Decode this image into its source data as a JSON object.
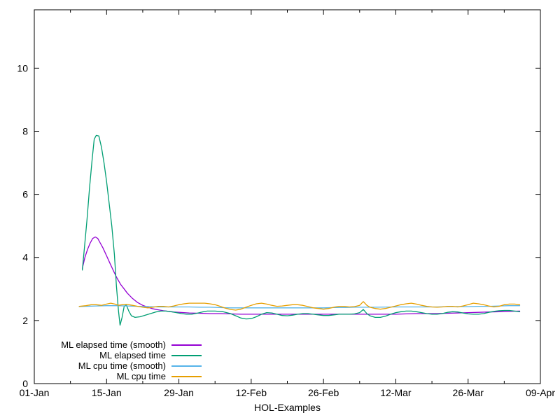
{
  "figure": {
    "background": "#ffffff",
    "axis_color": "#000000"
  },
  "legend": {
    "position": "inside-bottom-left",
    "items": [
      {
        "label": "ML elapsed time (smooth)",
        "color": "#9400d3"
      },
      {
        "label": "ML elapsed time",
        "color": "#009e73"
      },
      {
        "label": "ML cpu time (smooth)",
        "color": "#56b4e9"
      },
      {
        "label": "ML cpu time",
        "color": "#e69f00"
      }
    ]
  },
  "chart_data": {
    "type": "line",
    "title": "",
    "xlabel": "HOL-Examples",
    "ylabel": "",
    "grid": false,
    "x_axis": {
      "unit": "days-since-01-Jan",
      "range_days": [
        0,
        98
      ],
      "tick_days": [
        0,
        14,
        28,
        42,
        56,
        70,
        84,
        98
      ],
      "tick_labels": [
        "01-Jan",
        "15-Jan",
        "29-Jan",
        "12-Feb",
        "26-Feb",
        "12-Mar",
        "26-Mar",
        "09-Apr"
      ],
      "minor_tick_days": [
        7,
        21,
        35,
        49,
        63,
        77,
        91
      ]
    },
    "y_axis": {
      "range": [
        0,
        11.85
      ],
      "ticks": [
        0,
        2,
        4,
        6,
        8,
        10
      ],
      "tick_labels": [
        "0",
        "2",
        "4",
        "6",
        "8",
        "10"
      ]
    },
    "series": [
      {
        "name": "ML elapsed time (smooth)",
        "color": "#9400d3",
        "points": [
          [
            9.3,
            3.65
          ],
          [
            9.8,
            4.0
          ],
          [
            10.3,
            4.25
          ],
          [
            10.8,
            4.45
          ],
          [
            11.3,
            4.6
          ],
          [
            11.8,
            4.65
          ],
          [
            12.3,
            4.6
          ],
          [
            12.8,
            4.45
          ],
          [
            13.3,
            4.3
          ],
          [
            14,
            4.05
          ],
          [
            14.7,
            3.8
          ],
          [
            15.4,
            3.55
          ],
          [
            16,
            3.35
          ],
          [
            16.7,
            3.15
          ],
          [
            17.4,
            3.0
          ],
          [
            18,
            2.87
          ],
          [
            19,
            2.7
          ],
          [
            20,
            2.57
          ],
          [
            21,
            2.48
          ],
          [
            22,
            2.42
          ],
          [
            23,
            2.37
          ],
          [
            24,
            2.34
          ],
          [
            25,
            2.31
          ],
          [
            26,
            2.29
          ],
          [
            27,
            2.27
          ],
          [
            28,
            2.26
          ],
          [
            29,
            2.25
          ],
          [
            30,
            2.24
          ],
          [
            32,
            2.23
          ],
          [
            34,
            2.22
          ],
          [
            36,
            2.22
          ],
          [
            38,
            2.21
          ],
          [
            40,
            2.2
          ],
          [
            44,
            2.2
          ],
          [
            48,
            2.2
          ],
          [
            52,
            2.2
          ],
          [
            56,
            2.2
          ],
          [
            60,
            2.2
          ],
          [
            64,
            2.2
          ],
          [
            68,
            2.2
          ],
          [
            70,
            2.2
          ],
          [
            72,
            2.21
          ],
          [
            74,
            2.22
          ],
          [
            76,
            2.22
          ],
          [
            78,
            2.22
          ],
          [
            80,
            2.23
          ],
          [
            82,
            2.24
          ],
          [
            84,
            2.25
          ],
          [
            86,
            2.26
          ],
          [
            88,
            2.27
          ],
          [
            90,
            2.28
          ],
          [
            92,
            2.29
          ],
          [
            94,
            2.3
          ]
        ]
      },
      {
        "name": "ML elapsed time",
        "color": "#009e73",
        "points": [
          [
            9.3,
            3.6
          ],
          [
            9.7,
            4.3
          ],
          [
            10.2,
            5.2
          ],
          [
            10.7,
            6.2
          ],
          [
            11.2,
            7.1
          ],
          [
            11.6,
            7.75
          ],
          [
            12,
            7.87
          ],
          [
            12.5,
            7.85
          ],
          [
            13,
            7.5
          ],
          [
            13.5,
            7.0
          ],
          [
            14,
            6.4
          ],
          [
            14.5,
            5.7
          ],
          [
            15,
            5.0
          ],
          [
            15.5,
            4.1
          ],
          [
            15.9,
            3.1
          ],
          [
            16.3,
            2.3
          ],
          [
            16.6,
            1.85
          ],
          [
            17,
            2.1
          ],
          [
            17.4,
            2.45
          ],
          [
            17.8,
            2.5
          ],
          [
            18.3,
            2.3
          ],
          [
            18.8,
            2.15
          ],
          [
            19.5,
            2.1
          ],
          [
            20.5,
            2.12
          ],
          [
            21.5,
            2.17
          ],
          [
            22.5,
            2.22
          ],
          [
            23.5,
            2.27
          ],
          [
            24.5,
            2.3
          ],
          [
            25.5,
            2.3
          ],
          [
            26.5,
            2.28
          ],
          [
            27.5,
            2.25
          ],
          [
            28.5,
            2.22
          ],
          [
            29.5,
            2.2
          ],
          [
            30.5,
            2.2
          ],
          [
            31.5,
            2.23
          ],
          [
            32.5,
            2.27
          ],
          [
            33.5,
            2.3
          ],
          [
            35,
            2.3
          ],
          [
            36.5,
            2.28
          ],
          [
            38,
            2.22
          ],
          [
            39,
            2.15
          ],
          [
            40,
            2.08
          ],
          [
            41,
            2.05
          ],
          [
            42,
            2.06
          ],
          [
            43,
            2.12
          ],
          [
            44,
            2.2
          ],
          [
            45,
            2.25
          ],
          [
            46,
            2.24
          ],
          [
            47,
            2.2
          ],
          [
            48,
            2.16
          ],
          [
            49,
            2.15
          ],
          [
            50,
            2.17
          ],
          [
            51,
            2.2
          ],
          [
            52,
            2.22
          ],
          [
            53,
            2.22
          ],
          [
            54,
            2.2
          ],
          [
            55,
            2.18
          ],
          [
            56,
            2.16
          ],
          [
            57,
            2.16
          ],
          [
            58,
            2.18
          ],
          [
            59,
            2.2
          ],
          [
            60,
            2.2
          ],
          [
            61,
            2.2
          ],
          [
            62,
            2.21
          ],
          [
            63,
            2.25
          ],
          [
            63.7,
            2.35
          ],
          [
            64.4,
            2.22
          ],
          [
            65,
            2.15
          ],
          [
            66,
            2.1
          ],
          [
            67,
            2.1
          ],
          [
            68,
            2.14
          ],
          [
            69,
            2.2
          ],
          [
            70,
            2.25
          ],
          [
            71,
            2.28
          ],
          [
            72,
            2.3
          ],
          [
            73,
            2.3
          ],
          [
            74,
            2.28
          ],
          [
            75,
            2.25
          ],
          [
            76,
            2.22
          ],
          [
            77,
            2.2
          ],
          [
            78,
            2.2
          ],
          [
            79,
            2.22
          ],
          [
            80,
            2.26
          ],
          [
            81,
            2.28
          ],
          [
            82,
            2.27
          ],
          [
            83,
            2.24
          ],
          [
            84,
            2.21
          ],
          [
            85,
            2.2
          ],
          [
            86,
            2.2
          ],
          [
            87,
            2.22
          ],
          [
            88,
            2.26
          ],
          [
            89,
            2.29
          ],
          [
            90,
            2.31
          ],
          [
            91,
            2.32
          ],
          [
            92,
            2.32
          ],
          [
            93,
            2.3
          ],
          [
            94,
            2.28
          ]
        ]
      },
      {
        "name": "ML cpu time (smooth)",
        "color": "#56b4e9",
        "points": [
          [
            8.7,
            2.44
          ],
          [
            10,
            2.45
          ],
          [
            12,
            2.46
          ],
          [
            14,
            2.47
          ],
          [
            16,
            2.47
          ],
          [
            18,
            2.46
          ],
          [
            20,
            2.45
          ],
          [
            22,
            2.44
          ],
          [
            24,
            2.43
          ],
          [
            26,
            2.43
          ],
          [
            28,
            2.43
          ],
          [
            30,
            2.43
          ],
          [
            32,
            2.42
          ],
          [
            34,
            2.42
          ],
          [
            36,
            2.41
          ],
          [
            38,
            2.4
          ],
          [
            40,
            2.4
          ],
          [
            44,
            2.4
          ],
          [
            48,
            2.4
          ],
          [
            52,
            2.4
          ],
          [
            56,
            2.4
          ],
          [
            58,
            2.41
          ],
          [
            60,
            2.41
          ],
          [
            62,
            2.42
          ],
          [
            66,
            2.42
          ],
          [
            70,
            2.43
          ],
          [
            74,
            2.43
          ],
          [
            78,
            2.43
          ],
          [
            80,
            2.44
          ],
          [
            84,
            2.44
          ],
          [
            86,
            2.45
          ],
          [
            88,
            2.45
          ],
          [
            90,
            2.46
          ],
          [
            92,
            2.47
          ],
          [
            94,
            2.47
          ]
        ]
      },
      {
        "name": "ML cpu time",
        "color": "#e69f00",
        "points": [
          [
            8.7,
            2.45
          ],
          [
            10,
            2.47
          ],
          [
            11,
            2.5
          ],
          [
            12,
            2.5
          ],
          [
            13,
            2.48
          ],
          [
            14,
            2.52
          ],
          [
            14.8,
            2.55
          ],
          [
            15.6,
            2.52
          ],
          [
            16.3,
            2.48
          ],
          [
            17,
            2.5
          ],
          [
            18,
            2.51
          ],
          [
            19,
            2.48
          ],
          [
            20,
            2.45
          ],
          [
            21,
            2.42
          ],
          [
            22,
            2.4
          ],
          [
            23,
            2.42
          ],
          [
            24,
            2.45
          ],
          [
            25,
            2.45
          ],
          [
            26,
            2.43
          ],
          [
            27,
            2.46
          ],
          [
            28,
            2.5
          ],
          [
            29,
            2.53
          ],
          [
            30,
            2.55
          ],
          [
            31,
            2.55
          ],
          [
            32,
            2.55
          ],
          [
            33,
            2.55
          ],
          [
            34,
            2.53
          ],
          [
            35,
            2.5
          ],
          [
            36,
            2.45
          ],
          [
            37,
            2.39
          ],
          [
            38,
            2.35
          ],
          [
            39,
            2.33
          ],
          [
            40,
            2.36
          ],
          [
            41,
            2.42
          ],
          [
            42,
            2.48
          ],
          [
            43,
            2.53
          ],
          [
            44,
            2.55
          ],
          [
            45,
            2.52
          ],
          [
            46,
            2.48
          ],
          [
            47,
            2.45
          ],
          [
            48,
            2.46
          ],
          [
            49,
            2.48
          ],
          [
            50,
            2.5
          ],
          [
            51,
            2.5
          ],
          [
            52,
            2.48
          ],
          [
            53,
            2.44
          ],
          [
            54,
            2.4
          ],
          [
            55,
            2.38
          ],
          [
            56,
            2.36
          ],
          [
            57,
            2.38
          ],
          [
            58,
            2.42
          ],
          [
            59,
            2.45
          ],
          [
            60,
            2.45
          ],
          [
            61,
            2.43
          ],
          [
            62,
            2.44
          ],
          [
            63,
            2.48
          ],
          [
            63.7,
            2.6
          ],
          [
            64.4,
            2.48
          ],
          [
            65,
            2.42
          ],
          [
            66,
            2.38
          ],
          [
            67,
            2.36
          ],
          [
            68,
            2.38
          ],
          [
            69,
            2.42
          ],
          [
            70,
            2.46
          ],
          [
            71,
            2.5
          ],
          [
            72,
            2.53
          ],
          [
            73,
            2.55
          ],
          [
            74,
            2.52
          ],
          [
            75,
            2.48
          ],
          [
            76,
            2.45
          ],
          [
            77,
            2.43
          ],
          [
            78,
            2.42
          ],
          [
            79,
            2.43
          ],
          [
            80,
            2.45
          ],
          [
            81,
            2.45
          ],
          [
            82,
            2.43
          ],
          [
            83,
            2.46
          ],
          [
            84,
            2.5
          ],
          [
            85,
            2.55
          ],
          [
            86,
            2.53
          ],
          [
            87,
            2.5
          ],
          [
            88,
            2.46
          ],
          [
            89,
            2.43
          ],
          [
            90,
            2.45
          ],
          [
            91,
            2.5
          ],
          [
            92,
            2.52
          ],
          [
            93,
            2.52
          ],
          [
            94,
            2.5
          ]
        ]
      }
    ]
  }
}
